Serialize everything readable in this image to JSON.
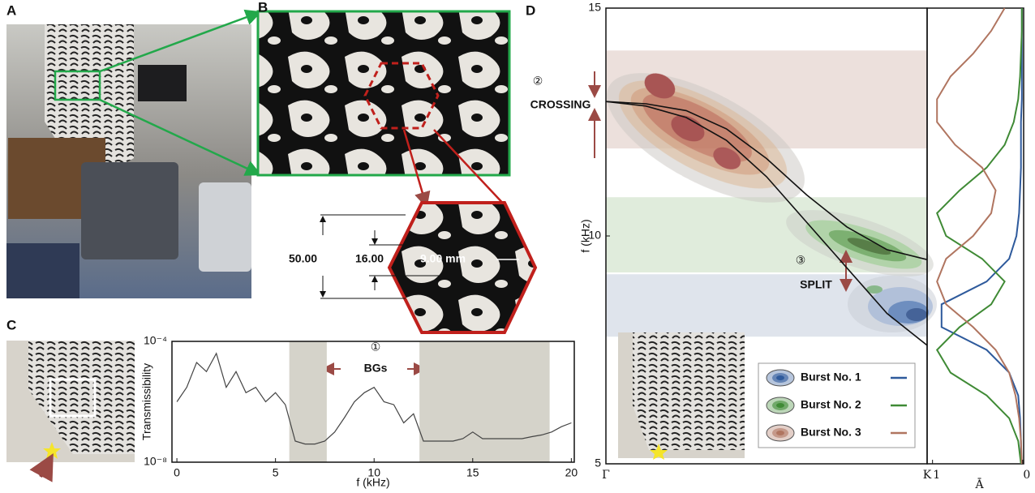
{
  "panel_labels": [
    "A",
    "B",
    "C",
    "D"
  ],
  "panel_b": {
    "dimensions": [
      "50.00",
      "16.00",
      "9.00 mm"
    ]
  },
  "chart_data": [
    {
      "type": "line",
      "xlabel": "f (kHz)",
      "ylabel": "Transmissibility",
      "x": [
        0,
        0.5,
        1,
        1.5,
        2,
        2.5,
        3,
        3.5,
        4,
        4.5,
        5,
        5.5,
        6,
        6.5,
        7,
        7.5,
        8,
        8.5,
        9,
        9.5,
        10,
        10.5,
        11,
        11.5,
        12,
        12.5,
        13,
        13.5,
        14,
        14.5,
        15,
        15.5,
        16,
        16.5,
        17,
        17.5,
        18,
        18.5,
        19,
        19.5,
        20
      ],
      "series": [
        {
          "color": "#444444",
          "values": [
            1e-06,
            3e-06,
            2e-05,
            1e-05,
            4e-05,
            3e-06,
            1e-05,
            2e-06,
            3e-06,
            1e-06,
            2e-06,
            8e-07,
            5e-08,
            4e-08,
            4e-08,
            5e-08,
            1e-07,
            3e-07,
            1e-06,
            2e-06,
            3e-06,
            1e-06,
            8e-07,
            2e-07,
            4e-07,
            5e-08,
            5e-08,
            5e-08,
            5e-08,
            6e-08,
            1e-07,
            6e-08,
            6e-08,
            6e-08,
            6e-08,
            6e-08,
            7e-08,
            8e-08,
            1e-07,
            1.5e-07,
            2e-07
          ]
        }
      ],
      "xlim": [
        -0.25,
        20.15
      ],
      "xticks": [
        0,
        5,
        10,
        15,
        20
      ],
      "ylim": [
        1e-08,
        0.0001
      ],
      "log_y": true,
      "yticks": [
        {
          "value": 1e-08,
          "label": "10⁻⁸"
        },
        {
          "value": 0.0001,
          "label": "10⁻⁴"
        }
      ],
      "bands": [
        [
          5.7,
          7.6
        ],
        [
          12.3,
          18.9
        ]
      ],
      "band_color": "#d5d3ca",
      "annotations": [
        "①",
        "BGs"
      ]
    },
    {
      "type": "line",
      "ylabel": "f (kHz)",
      "x": [
        0,
        0.125,
        0.25,
        0.375,
        0.5,
        0.625,
        0.75,
        0.875,
        1
      ],
      "series": [
        {
          "color": "#111111",
          "values": [
            12.95,
            12.9,
            12.75,
            12.35,
            11.7,
            10.9,
            10.2,
            9.7,
            9.48
          ]
        },
        {
          "color": "#111111",
          "values": [
            12.95,
            12.85,
            12.6,
            12.1,
            11.3,
            10.3,
            9.3,
            8.3,
            7.6
          ]
        }
      ],
      "xlim": [
        0,
        1
      ],
      "xticks": [
        {
          "value": 0,
          "label": "Γ"
        },
        {
          "value": 1,
          "label": "K"
        }
      ],
      "ylim": [
        5,
        15
      ],
      "yticks": [
        5,
        10,
        15
      ],
      "bands": [
        {
          "range": [
            11.92,
            14.07
          ],
          "color": "#ece0dc"
        },
        {
          "range": [
            9.2,
            10.85
          ],
          "color": "#e0ecdc"
        },
        {
          "range": [
            7.79,
            9.16
          ],
          "color": "#dfe4ec"
        }
      ],
      "annotations": [
        "②",
        "CROSSING",
        "③",
        "SPLIT"
      ]
    },
    {
      "type": "line",
      "orientation": "vertical",
      "xlabel": "Ā",
      "y": [
        5,
        5.5,
        6,
        6.5,
        7,
        7.5,
        8,
        8.5,
        9,
        9.5,
        10,
        10.5,
        11,
        11.5,
        12,
        12.5,
        13,
        13.5,
        14,
        14.5,
        15
      ],
      "series": [
        {
          "name": "Burst No. 1",
          "color": "#2e5a9c",
          "values": [
            0.02,
            0.02,
            0.03,
            0.05,
            0.15,
            0.4,
            0.9,
            0.9,
            0.4,
            0.15,
            0.07,
            0.04,
            0.03,
            0.02,
            0.02,
            0.02,
            0.01,
            0.01,
            0.01,
            0.01,
            0.01
          ]
        },
        {
          "name": "Burst No. 2",
          "color": "#3f8a35",
          "values": [
            0.02,
            0.05,
            0.15,
            0.4,
            0.8,
            0.95,
            0.7,
            0.35,
            0.2,
            0.45,
            0.85,
            0.95,
            0.7,
            0.4,
            0.2,
            0.1,
            0.05,
            0.03,
            0.02,
            0.01,
            0.01
          ]
        },
        {
          "name": "Burst No. 3",
          "color": "#b07560",
          "values": [
            0.01,
            0.02,
            0.04,
            0.08,
            0.15,
            0.3,
            0.55,
            0.85,
            0.95,
            0.85,
            0.55,
            0.35,
            0.3,
            0.45,
            0.75,
            0.95,
            0.95,
            0.8,
            0.55,
            0.35,
            0.2
          ]
        }
      ],
      "xlim": [
        1.06,
        -0.01
      ],
      "xticks": [
        1,
        0
      ],
      "ylim": [
        5,
        15
      ]
    }
  ]
}
